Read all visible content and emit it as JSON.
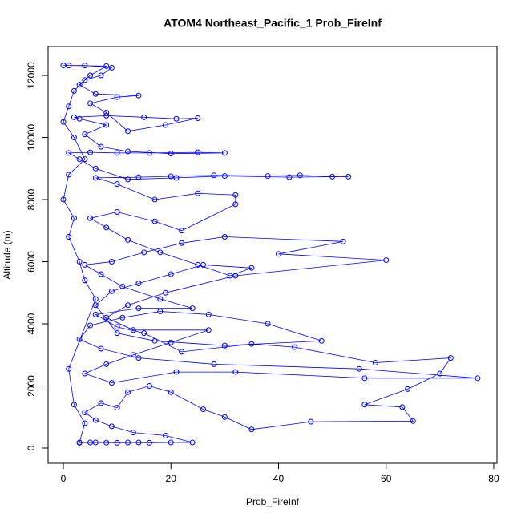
{
  "chart_data": {
    "type": "line",
    "title": "ATOM4 Northeast_Pacific_1 Prob_FireInf",
    "x_label": "Prob_FireInf",
    "y_label": "Altitude (m)",
    "xlim": [
      -2.83,
      80.6
    ],
    "ylim": [
      -490,
      12930
    ],
    "xticks": [
      0,
      20,
      40,
      60,
      80
    ],
    "yticks": [
      0,
      2000,
      4000,
      6000,
      8000,
      10000,
      12000
    ],
    "series": [
      {
        "color": "#0000ff",
        "x": [
          3,
          5,
          8,
          12,
          16,
          20,
          24,
          19,
          13,
          9,
          6,
          4,
          7,
          10,
          12,
          16,
          20,
          26,
          30,
          35,
          46,
          65,
          63,
          56,
          64,
          70,
          72,
          58,
          43,
          35,
          22,
          15,
          10,
          6,
          14,
          24,
          18,
          11,
          7,
          4,
          9,
          15,
          22,
          30,
          52,
          40,
          60,
          32,
          19,
          12,
          8,
          13,
          27,
          20,
          13,
          8,
          4,
          9,
          21,
          32,
          56,
          77,
          55,
          28,
          14,
          7,
          3,
          5,
          11,
          18,
          27,
          38,
          48,
          30,
          17,
          10,
          6,
          9,
          14,
          20,
          26,
          35,
          31,
          25,
          18,
          12,
          8,
          5,
          10,
          17,
          22,
          32,
          32,
          25,
          17,
          10,
          6,
          14,
          20,
          28,
          38,
          44,
          50,
          53,
          42,
          30,
          21,
          12,
          6,
          3,
          1,
          5,
          10,
          16,
          25,
          30,
          20,
          12,
          7,
          4,
          8,
          3,
          2,
          8,
          15,
          21,
          25,
          19,
          12,
          8,
          5,
          10,
          14,
          6,
          3,
          5,
          8,
          1,
          0,
          4,
          9,
          7,
          4,
          2,
          1,
          0,
          2,
          4,
          1,
          0,
          2,
          1,
          3,
          4,
          6,
          1,
          2,
          4,
          3,
          6,
          10,
          14
        ],
        "values": [
          170,
          180,
          175,
          180,
          170,
          180,
          180,
          400,
          500,
          700,
          900,
          1150,
          1450,
          1300,
          1800,
          2000,
          1800,
          1250,
          1000,
          600,
          850,
          870,
          1320,
          1400,
          1900,
          2400,
          2900,
          2750,
          3250,
          3350,
          3100,
          3700,
          3900,
          4300,
          4500,
          4500,
          4800,
          5200,
          5600,
          5900,
          6000,
          6300,
          6600,
          6800,
          6650,
          6250,
          6050,
          5550,
          5000,
          4600,
          4200,
          3800,
          3800,
          3400,
          3000,
          2700,
          2400,
          2100,
          2450,
          2450,
          2250,
          2250,
          2550,
          2700,
          2900,
          3200,
          3500,
          3950,
          4200,
          4400,
          4300,
          4000,
          3450,
          3300,
          3450,
          3700,
          4600,
          5050,
          5300,
          5600,
          5900,
          5800,
          5550,
          5900,
          6300,
          6700,
          7100,
          7400,
          7600,
          7300,
          7000,
          7850,
          8150,
          8200,
          8000,
          8500,
          8700,
          8720,
          8750,
          8780,
          8760,
          8780,
          8740,
          8740,
          8720,
          8760,
          8700,
          8650,
          9000,
          9300,
          9500,
          9520,
          9500,
          9500,
          9520,
          9500,
          9480,
          9550,
          9700,
          10100,
          10400,
          10600,
          10650,
          10700,
          10650,
          10600,
          10620,
          10400,
          10200,
          10800,
          11100,
          11300,
          11350,
          11400,
          11700,
          12000,
          12300,
          12320,
          12320,
          12320,
          12250,
          12000,
          11850,
          11500,
          11000,
          10500,
          10000,
          9300,
          8800,
          8000,
          7400,
          6800,
          6000,
          5400,
          4800,
          2550,
          1400,
          800,
          180,
          180,
          170,
          180
        ]
      }
    ]
  }
}
